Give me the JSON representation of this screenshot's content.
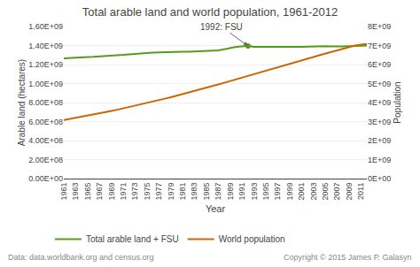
{
  "chart_data": {
    "type": "line",
    "title": "Total arable land and world population, 1961-2012",
    "xlabel": "Year",
    "ylabel": "Arable land (hectares)",
    "y2label": "Population",
    "x": [
      1961,
      1962,
      1963,
      1964,
      1965,
      1966,
      1967,
      1968,
      1969,
      1970,
      1971,
      1972,
      1973,
      1974,
      1975,
      1976,
      1977,
      1978,
      1979,
      1980,
      1981,
      1982,
      1983,
      1984,
      1985,
      1986,
      1987,
      1988,
      1989,
      1990,
      1991,
      1992,
      1993,
      1994,
      1995,
      1996,
      1997,
      1998,
      1999,
      2000,
      2001,
      2002,
      2003,
      2004,
      2005,
      2006,
      2007,
      2008,
      2009,
      2010,
      2011,
      2012
    ],
    "series": [
      {
        "name": "Total arable land + FSU",
        "color": "#5a9a1a",
        "axis": "y",
        "values": [
          1265000000.0,
          1270000000.0,
          1275000000.0,
          1278000000.0,
          1280000000.0,
          1282000000.0,
          1285000000.0,
          1290000000.0,
          1295000000.0,
          1298000000.0,
          1302000000.0,
          1308000000.0,
          1315000000.0,
          1318000000.0,
          1322000000.0,
          1325000000.0,
          1328000000.0,
          1330000000.0,
          1332000000.0,
          1333000000.0,
          1335000000.0,
          1335000000.0,
          1337000000.0,
          1338000000.0,
          1340000000.0,
          1343000000.0,
          1348000000.0,
          1360000000.0,
          1373000000.0,
          1385000000.0,
          1390000000.0,
          1395000000.0,
          1385000000.0,
          1383000000.0,
          1382000000.0,
          1385000000.0,
          1385000000.0,
          1383000000.0,
          1383000000.0,
          1385000000.0,
          1385000000.0,
          1388000000.0,
          1390000000.0,
          1392000000.0,
          1393000000.0,
          1390000000.0,
          1388000000.0,
          1390000000.0,
          1392000000.0,
          1393000000.0,
          1398000000.0,
          1400000000.0
        ]
      },
      {
        "name": "World population",
        "color": "#cc6600",
        "axis": "y2",
        "values": [
          3085000000.0,
          3140000000.0,
          3195000000.0,
          3252000000.0,
          3310000000.0,
          3369000000.0,
          3430000000.0,
          3493000000.0,
          3557000000.0,
          3623000000.0,
          3691000000.0,
          3760000000.0,
          3830000000.0,
          3902000000.0,
          3975000000.0,
          4050000000.0,
          4126000000.0,
          4204000000.0,
          4283000000.0,
          4363000000.0,
          4444000000.0,
          4527000000.0,
          4611000000.0,
          4696000000.0,
          4782000000.0,
          4868000000.0,
          4955000000.0,
          5042000000.0,
          5130000000.0,
          5218000000.0,
          5307000000.0,
          5397000000.0,
          5487000000.0,
          5577000000.0,
          5667000000.0,
          5758000000.0,
          5849000000.0,
          5940000000.0,
          6031000000.0,
          6122000000.0,
          6213000000.0,
          6305000000.0,
          6396000000.0,
          6487000000.0,
          6578000000.0,
          6669000000.0,
          6761000000.0,
          6852000000.0,
          6943000000.0,
          7000000000.0,
          7050000000.0,
          7080000000.0
        ]
      }
    ],
    "xlim": [
      1961,
      2012
    ],
    "xticks": [
      1961,
      1963,
      1965,
      1967,
      1969,
      1971,
      1973,
      1975,
      1977,
      1979,
      1981,
      1983,
      1985,
      1987,
      1989,
      1991,
      1993,
      1995,
      1997,
      1999,
      2001,
      2003,
      2005,
      2007,
      2009,
      2011
    ],
    "ylim": [
      0.0,
      1600000000.0
    ],
    "yticks": [
      {
        "value": 0.0,
        "label": "0.00E+00"
      },
      {
        "value": 200000000.0,
        "label": "2.00E+08"
      },
      {
        "value": 400000000.0,
        "label": "4.00E+08"
      },
      {
        "value": 600000000.0,
        "label": "6.00E+08"
      },
      {
        "value": 800000000.0,
        "label": "8.00E+08"
      },
      {
        "value": 1000000000.0,
        "label": "1.00E+09"
      },
      {
        "value": 1200000000.0,
        "label": "1.20E+09"
      },
      {
        "value": 1400000000.0,
        "label": "1.40E+09"
      },
      {
        "value": 1600000000.0,
        "label": "1.60E+09"
      }
    ],
    "y2lim": [
      0.0,
      8000000000.0
    ],
    "y2ticks": [
      {
        "value": 0.0,
        "label": "0E+00"
      },
      {
        "value": 1000000000.0,
        "label": "1E+09"
      },
      {
        "value": 2000000000.0,
        "label": "2E+09"
      },
      {
        "value": 3000000000.0,
        "label": "3E+09"
      },
      {
        "value": 4000000000.0,
        "label": "4E+09"
      },
      {
        "value": 5000000000.0,
        "label": "5E+09"
      },
      {
        "value": 6000000000.0,
        "label": "6E+09"
      },
      {
        "value": 7000000000.0,
        "label": "7E+09"
      },
      {
        "value": 8000000000.0,
        "label": "8E+09"
      }
    ],
    "grid": "y",
    "legend": "bottom",
    "annotations": [
      {
        "text": "1992: FSU",
        "x": 1992,
        "y": 1395000000.0
      }
    ],
    "footnote": "Data: data.worldbank.org and census.org",
    "copyright": "Copyright © 2015 James P. Galasyn"
  }
}
